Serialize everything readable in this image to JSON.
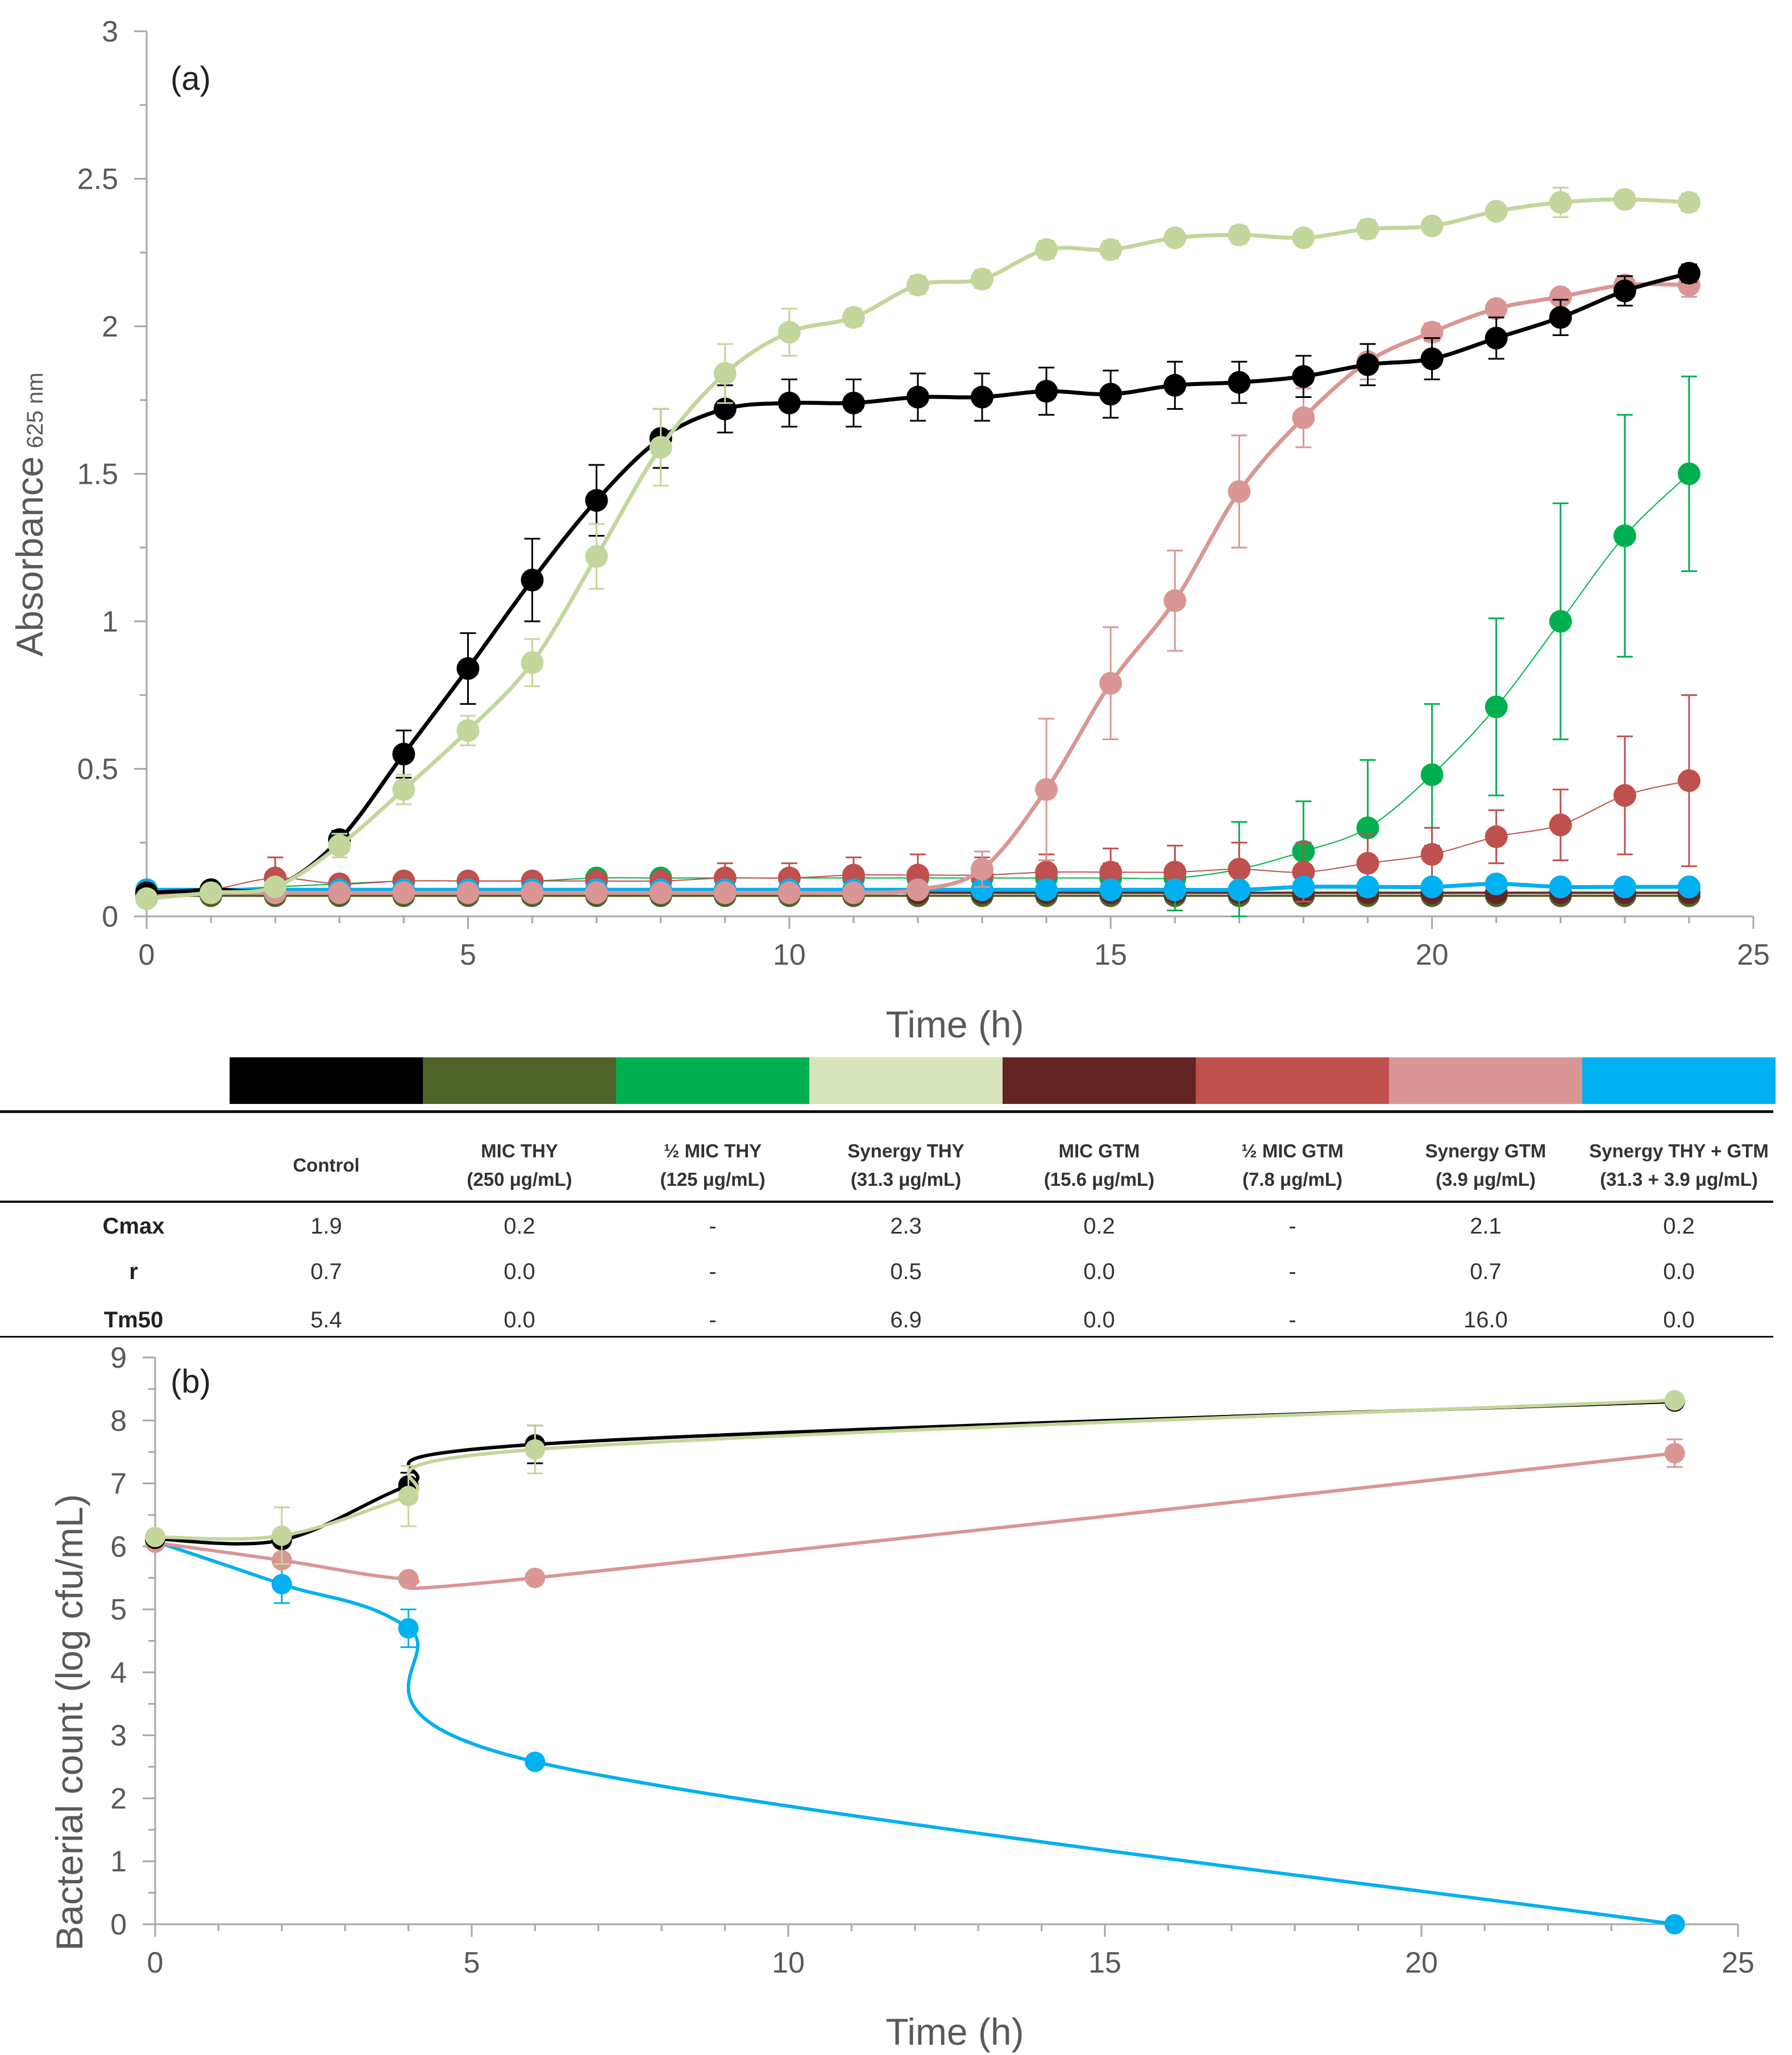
{
  "chart_data": [
    {
      "type": "line",
      "panel_label": "(a)",
      "xlabel": "Time (h)",
      "ylabel": "Absorbance",
      "ylabel_sub": "625 nm",
      "xlim": [
        0,
        25
      ],
      "ylim": [
        0,
        3
      ],
      "xticks": [
        "0",
        "5",
        "10",
        "15",
        "20",
        "25"
      ],
      "yticks": [
        "0",
        "0.5",
        "1",
        "1.5",
        "2",
        "2.5",
        "3"
      ],
      "grid": false,
      "series": [
        {
          "name": "MIC THY",
          "color": "#4f6228",
          "width": 4,
          "x": [
            0,
            1,
            2,
            3,
            4,
            5,
            6,
            7,
            8,
            9,
            10,
            11,
            12,
            13,
            14,
            15,
            16,
            17,
            18,
            19,
            20,
            21,
            22,
            23,
            24
          ],
          "y": [
            0.07,
            0.07,
            0.07,
            0.07,
            0.07,
            0.07,
            0.07,
            0.07,
            0.07,
            0.07,
            0.07,
            0.07,
            0.07,
            0.07,
            0.07,
            0.07,
            0.07,
            0.07,
            0.07,
            0.07,
            0.07,
            0.07,
            0.07,
            0.07,
            0.07
          ]
        },
        {
          "name": "MIC GTM",
          "color": "#632523",
          "width": 4,
          "x": [
            0,
            1,
            2,
            3,
            4,
            5,
            6,
            7,
            8,
            9,
            10,
            11,
            12,
            13,
            14,
            15,
            16,
            17,
            18,
            19,
            20,
            21,
            22,
            23,
            24
          ],
          "y": [
            0.08,
            0.08,
            0.08,
            0.08,
            0.08,
            0.08,
            0.08,
            0.08,
            0.08,
            0.08,
            0.08,
            0.08,
            0.08,
            0.08,
            0.08,
            0.08,
            0.08,
            0.08,
            0.08,
            0.08,
            0.08,
            0.08,
            0.08,
            0.08,
            0.08
          ]
        },
        {
          "name": "½ MIC THY",
          "color": "#00b050",
          "width": 2,
          "x": [
            0,
            1,
            2,
            3,
            4,
            5,
            6,
            7,
            8,
            9,
            10,
            11,
            12,
            13,
            14,
            15,
            16,
            17,
            18,
            19,
            20,
            21,
            22,
            23,
            24
          ],
          "y": [
            0.08,
            0.09,
            0.1,
            0.11,
            0.12,
            0.12,
            0.12,
            0.13,
            0.13,
            0.13,
            0.13,
            0.13,
            0.13,
            0.13,
            0.13,
            0.13,
            0.13,
            0.16,
            0.22,
            0.3,
            0.48,
            0.71,
            1.0,
            1.29,
            1.5
          ],
          "err": [
            0.01,
            0.01,
            0.01,
            0.01,
            0.01,
            0.01,
            0.01,
            0.01,
            0.01,
            0.02,
            0.02,
            0.02,
            0.02,
            0.02,
            0.03,
            0.05,
            0.11,
            0.16,
            0.17,
            0.23,
            0.24,
            0.3,
            0.4,
            0.41,
            0.33
          ]
        },
        {
          "name": "½ MIC GTM",
          "color": "#c0504d",
          "width": 2,
          "x": [
            0,
            1,
            2,
            3,
            4,
            5,
            6,
            7,
            8,
            9,
            10,
            11,
            12,
            13,
            14,
            15,
            16,
            17,
            18,
            19,
            20,
            21,
            22,
            23,
            24
          ],
          "y": [
            0.07,
            0.09,
            0.13,
            0.11,
            0.12,
            0.12,
            0.12,
            0.12,
            0.12,
            0.13,
            0.13,
            0.14,
            0.14,
            0.14,
            0.15,
            0.15,
            0.15,
            0.16,
            0.15,
            0.18,
            0.21,
            0.27,
            0.31,
            0.41,
            0.46
          ],
          "err": [
            0.01,
            0.01,
            0.07,
            0.01,
            0.01,
            0.01,
            0.02,
            0.02,
            0.02,
            0.05,
            0.05,
            0.06,
            0.07,
            0.06,
            0.06,
            0.08,
            0.09,
            0.09,
            0.1,
            0.1,
            0.09,
            0.09,
            0.12,
            0.2,
            0.29
          ]
        },
        {
          "name": "Synergy THY + GTM",
          "color": "#00b0f0",
          "width": 7,
          "x": [
            0,
            1,
            2,
            3,
            4,
            5,
            6,
            7,
            8,
            9,
            10,
            11,
            12,
            13,
            14,
            15,
            16,
            17,
            18,
            19,
            20,
            21,
            22,
            23,
            24
          ],
          "y": [
            0.09,
            0.09,
            0.09,
            0.09,
            0.09,
            0.09,
            0.09,
            0.09,
            0.09,
            0.09,
            0.09,
            0.09,
            0.09,
            0.09,
            0.09,
            0.09,
            0.09,
            0.09,
            0.1,
            0.1,
            0.1,
            0.11,
            0.1,
            0.1,
            0.1
          ],
          "err": [
            0.02,
            0.02,
            0.02,
            0.02,
            0.02,
            0.02,
            0.02,
            0.02,
            0.02,
            0.02,
            0.02,
            0.02,
            0.02,
            0.02,
            0.02,
            0.02,
            0.02,
            0.02,
            0.02,
            0.02,
            0.02,
            0.02,
            0.02,
            0.02,
            0.02
          ]
        },
        {
          "name": "Synergy GTM",
          "color": "#d99694",
          "width": 7,
          "x": [
            0,
            1,
            2,
            3,
            4,
            5,
            6,
            7,
            8,
            9,
            10,
            11,
            12,
            13,
            14,
            15,
            16,
            17,
            18,
            19,
            20,
            21,
            22,
            23,
            24
          ],
          "y": [
            0.07,
            0.08,
            0.08,
            0.08,
            0.08,
            0.08,
            0.08,
            0.08,
            0.08,
            0.08,
            0.08,
            0.08,
            0.09,
            0.16,
            0.43,
            0.79,
            1.07,
            1.44,
            1.69,
            1.88,
            1.98,
            2.06,
            2.1,
            2.14,
            2.14
          ],
          "err": [
            0.01,
            0.01,
            0.01,
            0.01,
            0.01,
            0.01,
            0.01,
            0.01,
            0.01,
            0.01,
            0.01,
            0.01,
            0.02,
            0.06,
            0.24,
            0.19,
            0.17,
            0.19,
            0.1,
            0.06,
            0.03,
            0.02,
            0.02,
            0.03,
            0.04
          ]
        },
        {
          "name": "Control",
          "color": "#000000",
          "width": 7,
          "x": [
            0,
            1,
            2,
            3,
            4,
            5,
            6,
            7,
            8,
            9,
            10,
            11,
            12,
            13,
            14,
            15,
            16,
            17,
            18,
            19,
            20,
            21,
            22,
            23,
            24
          ],
          "y": [
            0.08,
            0.09,
            0.1,
            0.26,
            0.55,
            0.84,
            1.14,
            1.41,
            1.62,
            1.72,
            1.74,
            1.74,
            1.76,
            1.76,
            1.78,
            1.77,
            1.8,
            1.81,
            1.83,
            1.87,
            1.89,
            1.96,
            2.03,
            2.12,
            2.18
          ],
          "err": [
            0.01,
            0.01,
            0.02,
            0.03,
            0.08,
            0.12,
            0.14,
            0.12,
            0.1,
            0.08,
            0.08,
            0.08,
            0.08,
            0.08,
            0.08,
            0.08,
            0.08,
            0.07,
            0.07,
            0.07,
            0.07,
            0.07,
            0.06,
            0.05,
            0.03
          ]
        },
        {
          "name": "Synergy THY",
          "color": "#c3d69b",
          "width": 7,
          "x": [
            0,
            1,
            2,
            3,
            4,
            5,
            6,
            7,
            8,
            9,
            10,
            11,
            12,
            13,
            14,
            15,
            16,
            17,
            18,
            19,
            20,
            21,
            22,
            23,
            24
          ],
          "y": [
            0.06,
            0.08,
            0.1,
            0.24,
            0.43,
            0.63,
            0.86,
            1.22,
            1.59,
            1.84,
            1.98,
            2.03,
            2.14,
            2.16,
            2.26,
            2.26,
            2.3,
            2.31,
            2.3,
            2.33,
            2.34,
            2.39,
            2.42,
            2.43,
            2.42
          ],
          "err": [
            0.01,
            0.01,
            0.02,
            0.04,
            0.05,
            0.05,
            0.08,
            0.11,
            0.13,
            0.1,
            0.08,
            0.03,
            0.03,
            0.03,
            0.03,
            0.03,
            0.02,
            0.03,
            0.02,
            0.03,
            0.02,
            0.02,
            0.05,
            0.02,
            0.03
          ]
        }
      ]
    },
    {
      "type": "line",
      "panel_label": "(b)",
      "xlabel": "Time (h)",
      "ylabel": "Bacterial count (log cfu/mL)",
      "xlim": [
        0,
        25
      ],
      "ylim": [
        0,
        9
      ],
      "xticks": [
        "0",
        "5",
        "10",
        "15",
        "20",
        "25"
      ],
      "yticks": [
        "0",
        "1",
        "2",
        "3",
        "4",
        "5",
        "6",
        "7",
        "8",
        "9"
      ],
      "grid": false,
      "series": [
        {
          "name": "Synergy THY + GTM",
          "color": "#00b0f0",
          "width": 6,
          "x": [
            0,
            2,
            4,
            6,
            24
          ],
          "y": [
            6.08,
            5.4,
            4.7,
            2.58,
            0.0
          ],
          "err": [
            0.05,
            0.3,
            0.3,
            0.05,
            0.05
          ]
        },
        {
          "name": "Synergy GTM",
          "color": "#d99694",
          "width": 6,
          "x": [
            0,
            2,
            4,
            6,
            24
          ],
          "y": [
            6.06,
            5.78,
            5.48,
            5.5,
            7.48
          ],
          "err": [
            0.05,
            0.1,
            0.08,
            0.06,
            0.22
          ]
        },
        {
          "name": "Control",
          "color": "#000000",
          "width": 6,
          "x": [
            0,
            2,
            4,
            6,
            24
          ],
          "y": [
            6.12,
            6.1,
            6.97,
            7.62,
            8.3
          ],
          "err": [
            0.05,
            0.06,
            0.2,
            0.3,
            0.05
          ]
        },
        {
          "name": "Synergy THY",
          "color": "#c3d69b",
          "width": 6,
          "x": [
            0,
            2,
            4,
            6,
            24
          ],
          "y": [
            6.15,
            6.17,
            6.8,
            7.54,
            8.32
          ],
          "err": [
            0.08,
            0.45,
            0.48,
            0.38,
            0.05
          ]
        }
      ]
    }
  ],
  "legend_table": {
    "swatch_colors": [
      "#000000",
      "#4f6228",
      "#00b050",
      "#d7e4bd",
      "#632523",
      "#c0504d",
      "#d99694",
      "#00b0f0"
    ],
    "columns": [
      {
        "line1": "Control",
        "line2": ""
      },
      {
        "line1": "MIC THY",
        "line2": "(250 μg/mL)"
      },
      {
        "line1": "½ MIC THY",
        "line2": "(125 μg/mL)"
      },
      {
        "line1": "Synergy THY",
        "line2": "(31.3 μg/mL)"
      },
      {
        "line1": "MIC GTM",
        "line2": "(15.6 μg/mL)"
      },
      {
        "line1": "½ MIC GTM",
        "line2": "(7.8 μg/mL)"
      },
      {
        "line1": "Synergy GTM",
        "line2": "(3.9 μg/mL)"
      },
      {
        "line1": "Synergy THY + GTM",
        "line2": "(31.3 + 3.9 μg/mL)"
      }
    ],
    "rows": [
      {
        "label": "Cmax",
        "values": [
          "1.9",
          "0.2",
          "-",
          "2.3",
          "0.2",
          "-",
          "2.1",
          "0.2"
        ]
      },
      {
        "label": "r",
        "values": [
          "0.7",
          "0.0",
          "-",
          "0.5",
          "0.0",
          "-",
          "0.7",
          "0.0"
        ]
      },
      {
        "label": "Tm50",
        "values": [
          "5.4",
          "0.0",
          "-",
          "6.9",
          "0.0",
          "-",
          "16.0",
          "0.0"
        ]
      }
    ]
  }
}
